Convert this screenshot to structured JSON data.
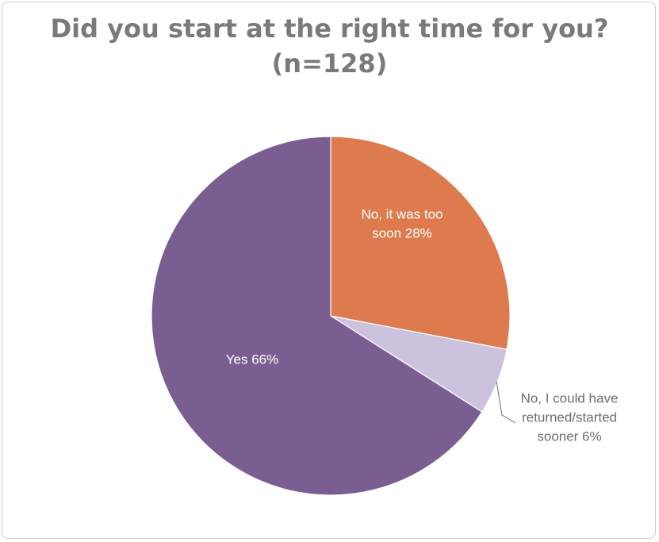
{
  "chart_data": {
    "type": "pie",
    "title": "Did you start at the right time for you?",
    "subtitle": "(n=128)",
    "slices": [
      {
        "label_lines": [
          "No, it was too",
          "soon 28%"
        ],
        "value": 28,
        "color": "#dd7b4e",
        "label_color": "#ffffff"
      },
      {
        "label_lines": [
          "No, I could have",
          "returned/started",
          "sooner 6%"
        ],
        "value": 6,
        "color": "#cdc2de",
        "label_color": "#6e6e6e"
      },
      {
        "label_lines": [
          "Yes 66%"
        ],
        "value": 66,
        "color": "#7b5e91",
        "label_color": "#ffffff"
      }
    ],
    "start_angle": "top",
    "direction": "clockwise",
    "legend": "none"
  }
}
